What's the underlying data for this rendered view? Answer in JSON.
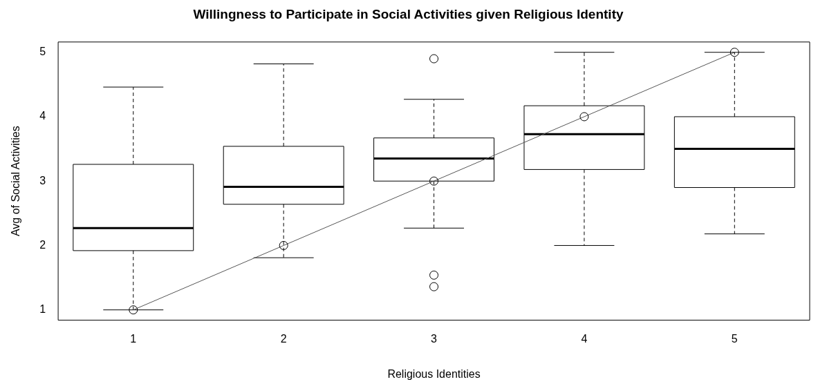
{
  "chart_data": {
    "type": "box",
    "title": "Willingness to Participate in Social Activities given Religious Identity",
    "xlabel": "Religious Identities",
    "ylabel": "Avg of Social Activities",
    "categories": [
      "1",
      "2",
      "3",
      "4",
      "5"
    ],
    "boxes": [
      {
        "low": 1.0,
        "q1": 1.92,
        "median": 2.27,
        "q3": 3.26,
        "high": 4.46
      },
      {
        "low": 1.81,
        "q1": 2.64,
        "median": 2.91,
        "q3": 3.54,
        "high": 4.82
      },
      {
        "low": 2.27,
        "q1": 3.0,
        "median": 3.35,
        "q3": 3.67,
        "high": 4.27,
        "outliers": [
          4.9,
          1.54,
          1.36
        ]
      },
      {
        "low": 2.0,
        "q1": 3.18,
        "median": 3.73,
        "q3": 4.17,
        "high": 5.0
      },
      {
        "low": 2.18,
        "q1": 2.9,
        "median": 3.5,
        "q3": 4.0,
        "high": 5.0
      }
    ],
    "series": [
      {
        "type": "line",
        "x": [
          "1",
          "2",
          "3",
          "4",
          "5"
        ],
        "values": [
          1,
          2,
          3,
          4,
          5
        ],
        "color": "#555555"
      }
    ],
    "marker": "circle",
    "ylim": [
      0.84,
      5.16
    ],
    "yticks": [
      1,
      2,
      3,
      4,
      5
    ],
    "grid": false,
    "legend": false
  }
}
